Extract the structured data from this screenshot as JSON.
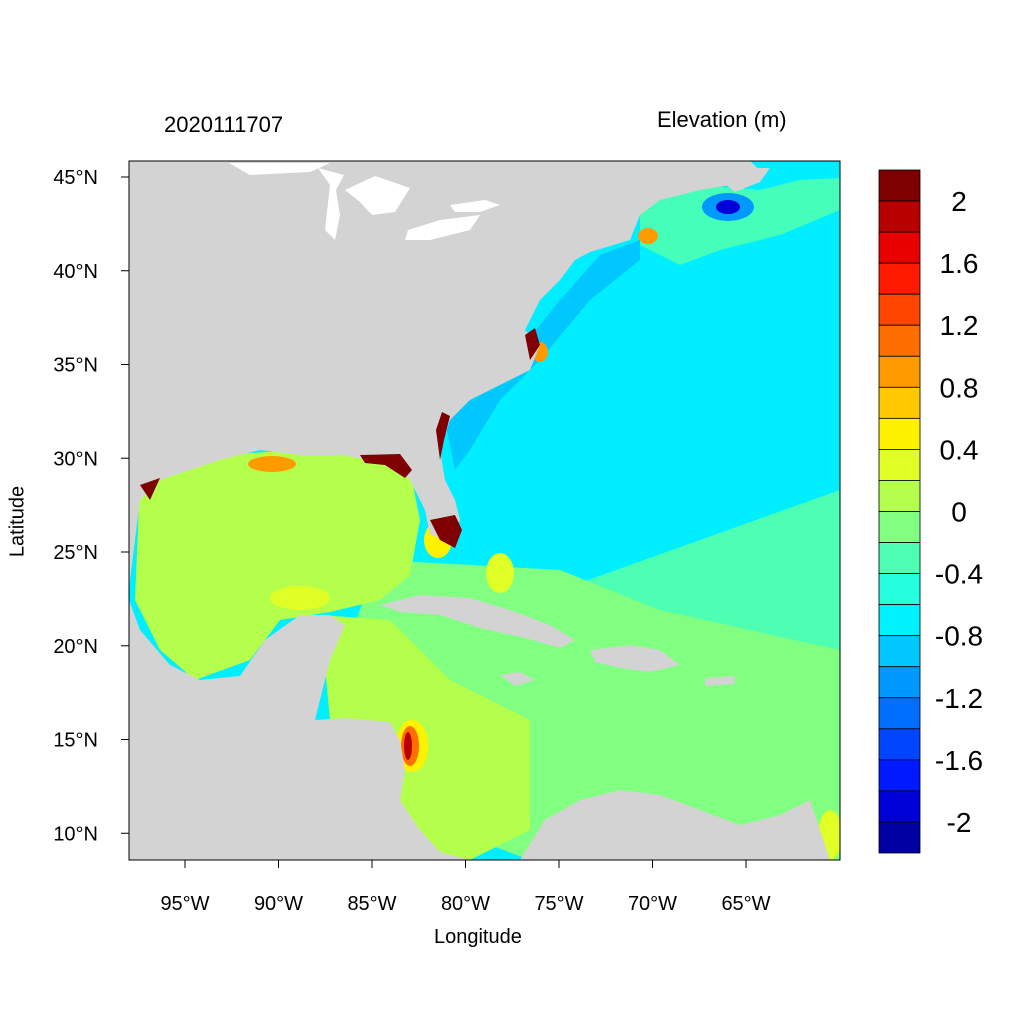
{
  "title_left": "2020111707",
  "title_right": "Elevation (m)",
  "axes": {
    "xlabel": "Longitude",
    "ylabel": "Latitude",
    "x_ticks": [
      {
        "value": -95,
        "label": "95°W"
      },
      {
        "value": -90,
        "label": "90°W"
      },
      {
        "value": -85,
        "label": "85°W"
      },
      {
        "value": -80,
        "label": "80°W"
      },
      {
        "value": -75,
        "label": "75°W"
      },
      {
        "value": -70,
        "label": "70°W"
      },
      {
        "value": -65,
        "label": "65°W"
      }
    ],
    "y_ticks": [
      {
        "value": 45,
        "label": "45°N"
      },
      {
        "value": 40,
        "label": "40°N"
      },
      {
        "value": 35,
        "label": "35°N"
      },
      {
        "value": 30,
        "label": "30°N"
      },
      {
        "value": 25,
        "label": "25°N"
      },
      {
        "value": 20,
        "label": "20°N"
      },
      {
        "value": 15,
        "label": "15°N"
      },
      {
        "value": 10,
        "label": "10°N"
      }
    ]
  },
  "colorbar": {
    "levels_top_to_bottom": [
      "#7f0000",
      "#b80000",
      "#e60000",
      "#ff1a00",
      "#ff4500",
      "#ff6f00",
      "#ff9a00",
      "#ffc800",
      "#fff200",
      "#dfff26",
      "#b3ff4c",
      "#80ff80",
      "#4dffb3",
      "#26ffdf",
      "#00f2ff",
      "#00c8ff",
      "#009aff",
      "#006fff",
      "#0045ff",
      "#001aff",
      "#0000d9",
      "#0000a3"
    ],
    "labels": [
      "2",
      "1.6",
      "1.2",
      "0.8",
      "0.4",
      "0",
      "-0.4",
      "-0.8",
      "-1.2",
      "-1.6",
      "-2"
    ]
  },
  "colors": {
    "land": "#d3d3d3",
    "lakes": "#ffffff",
    "open_ocean": "#00eeff",
    "caribbean": "#80ff80",
    "gulf": "#b3ff4c",
    "surge_high": "#7f0000",
    "surge_low": "#0000d9"
  }
}
